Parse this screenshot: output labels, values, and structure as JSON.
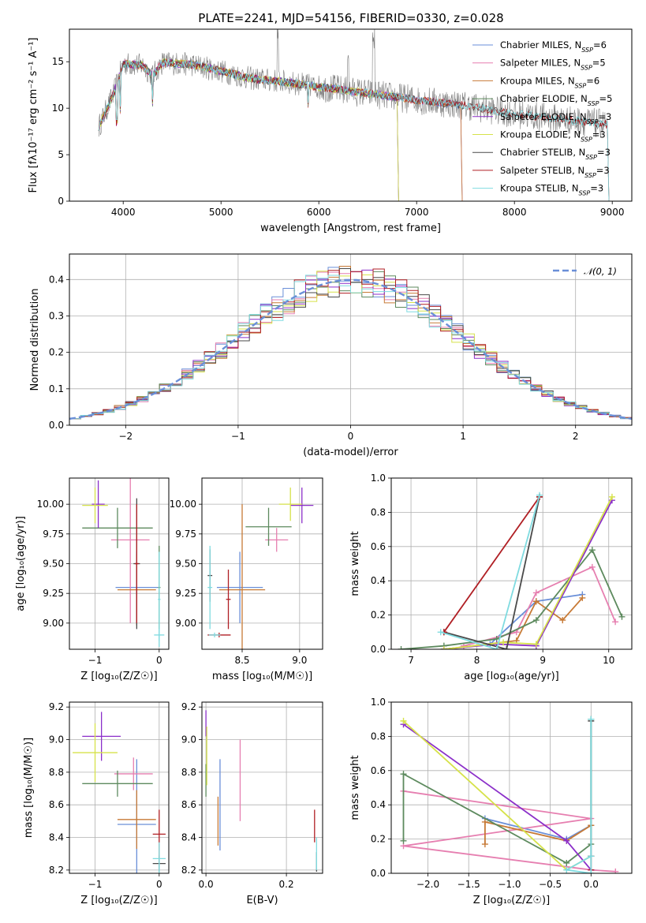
{
  "colors": [
    "#6a8fd8",
    "#e67fb0",
    "#c77a36",
    "#5d8a5e",
    "#8b2fc9",
    "#d6e24a",
    "#4a4a4a",
    "#b01f24",
    "#7fdbe0"
  ],
  "series_names": [
    "Chabrier MILES, N_SSP=6",
    "Salpeter MILES, N_SSP=5",
    "Kroupa MILES, N_SSP=6",
    "Chabrier ELODIE, N_SSP=5",
    "Salpeter ELODIE, N_SSP=3",
    "Kroupa ELODIE, N_SSP=3",
    "Chabrier STELIB, N_SSP=3",
    "Salpeter STELIB, N_SSP=3",
    "Kroupa STELIB, N_SSP=3"
  ],
  "chart_data": [
    {
      "id": "spectrum",
      "type": "line",
      "title": "PLATE=2241, MJD=54156, FIBERID=0330, z=0.028",
      "xlabel": "wavelength [Angstrom, rest frame]",
      "ylabel": "Flux [fλ10⁻¹⁷ erg cm⁻² s⁻¹ A⁻¹]",
      "xlim": [
        3450,
        9200
      ],
      "ylim": [
        0,
        18.5
      ],
      "xticks": [
        4000,
        5000,
        6000,
        7000,
        8000,
        9000
      ],
      "yticks": [
        0,
        5,
        10,
        15
      ],
      "legend": "top-right",
      "continuum_x": [
        3750,
        3900,
        4000,
        4200,
        4300,
        4400,
        4700,
        5000,
        5300,
        5600,
        6000,
        6500,
        7000,
        7500,
        8000,
        8500,
        9000
      ],
      "continuum_y": [
        8.0,
        11.5,
        14.8,
        14.6,
        13.5,
        14.9,
        14.7,
        14.0,
        13.2,
        12.9,
        12.3,
        11.6,
        10.9,
        10.3,
        9.4,
        8.8,
        8.2
      ],
      "series": [
        {
          "name": "Chabrier MILES",
          "nssp": 6,
          "xmax": 7450
        },
        {
          "name": "Salpeter MILES",
          "nssp": 5,
          "xmax": 7450
        },
        {
          "name": "Kroupa MILES",
          "nssp": 6,
          "xmax": 7450
        },
        {
          "name": "Chabrier ELODIE",
          "nssp": 5,
          "xmax": 6800
        },
        {
          "name": "Salpeter ELODIE",
          "nssp": 3,
          "xmax": 6800
        },
        {
          "name": "Kroupa ELODIE",
          "nssp": 3,
          "xmax": 6800
        },
        {
          "name": "Chabrier STELIB",
          "nssp": 3,
          "xmax": 8950
        },
        {
          "name": "Salpeter STELIB",
          "nssp": 3,
          "xmax": 8950
        },
        {
          "name": "Kroupa STELIB",
          "nssp": 3,
          "xmax": 8950
        }
      ]
    },
    {
      "id": "residuals",
      "type": "histogram",
      "xlabel": "(data-model)/error",
      "ylabel": "Normed distribution",
      "xlim": [
        -2.5,
        2.5
      ],
      "ylim": [
        0,
        0.47
      ],
      "xticks": [
        -2,
        -1,
        0,
        1,
        2
      ],
      "yticks": [
        0.0,
        0.1,
        0.2,
        0.3,
        0.4
      ],
      "bin_width": 0.1,
      "reference_label": "𝒩(0, 1)",
      "legend": "top-right"
    },
    {
      "id": "age_vs_Z",
      "type": "errorbar",
      "xlabel": "Z [log₁₀(Z/Z☉)]",
      "ylabel": "age  [log₁₀(age/yr)]",
      "xlim": [
        -1.4,
        0.15
      ],
      "ylim": [
        8.78,
        10.22
      ],
      "xticks": [
        -1,
        0
      ],
      "yticks": [
        9.0,
        9.25,
        9.5,
        9.75,
        10.0
      ],
      "points": [
        {
          "s": 0,
          "x": -0.35,
          "y": 9.3,
          "xerr": 0.33,
          "yerr": 0.3
        },
        {
          "s": 1,
          "x": -0.45,
          "y": 9.7,
          "xerr": 0.3,
          "yerr": 0.7
        },
        {
          "s": 2,
          "x": -0.35,
          "y": 9.28,
          "xerr": 0.3,
          "yerr": 0.3
        },
        {
          "s": 3,
          "x": -0.65,
          "y": 9.8,
          "xerr": 0.55,
          "yerr": 0.17
        },
        {
          "s": 4,
          "x": -0.95,
          "y": 10.0,
          "xerr": 0.1,
          "yerr": 0.2
        },
        {
          "s": 5,
          "x": -1.0,
          "y": 9.99,
          "xerr": 0.2,
          "yerr": 0.15
        },
        {
          "s": 6,
          "x": -0.35,
          "y": 9.5,
          "xerr": 0.05,
          "yerr": 0.55
        },
        {
          "s": 7,
          "x": -0.35,
          "y": 9.5,
          "xerr": 0.03,
          "yerr": 0.5
        },
        {
          "s": 8,
          "x": 0.0,
          "y": 8.9,
          "xerr": 0.08,
          "yerr": 0.05
        },
        {
          "s": 3,
          "x": 0.0,
          "y": 9.3,
          "xerr": 0.02,
          "yerr": 0.35
        },
        {
          "s": 8,
          "x": 0.0,
          "y": 9.2,
          "xerr": 0.02,
          "yerr": 0.4
        }
      ]
    },
    {
      "id": "age_vs_mass",
      "type": "errorbar",
      "xlabel": "mass [log₁₀(M/M☉)]",
      "ylabel": "",
      "xlim": [
        8.15,
        9.2
      ],
      "ylim": [
        8.78,
        10.22
      ],
      "xticks": [
        8.5,
        9.0
      ],
      "yticks": [
        9.0,
        9.25,
        9.5,
        9.75,
        10.0
      ],
      "points": [
        {
          "s": 0,
          "x": 8.48,
          "y": 9.3,
          "xerr": 0.2,
          "yerr": 0.3
        },
        {
          "s": 1,
          "x": 8.8,
          "y": 9.7,
          "xerr": 0.1,
          "yerr": 0.1
        },
        {
          "s": 2,
          "x": 8.5,
          "y": 9.28,
          "xerr": 0.2,
          "yerr": 0.72
        },
        {
          "s": 3,
          "x": 8.73,
          "y": 9.81,
          "xerr": 0.2,
          "yerr": 0.16
        },
        {
          "s": 4,
          "x": 9.02,
          "y": 9.99,
          "xerr": 0.1,
          "yerr": 0.15
        },
        {
          "s": 5,
          "x": 8.92,
          "y": 10.0,
          "xerr": 0.1,
          "yerr": 0.14
        },
        {
          "s": 6,
          "x": 8.22,
          "y": 9.4,
          "xerr": 0.02,
          "yerr": 0.22
        },
        {
          "s": 7,
          "x": 8.38,
          "y": 9.2,
          "xerr": 0.02,
          "yerr": 0.25
        },
        {
          "s": 7,
          "x": 8.3,
          "y": 8.9,
          "xerr": 0.1,
          "yerr": 0.02
        },
        {
          "s": 8,
          "x": 8.26,
          "y": 8.9,
          "xerr": 0.05,
          "yerr": 0.02
        },
        {
          "s": 8,
          "x": 8.22,
          "y": 9.3,
          "xerr": 0.02,
          "yerr": 0.35
        }
      ]
    },
    {
      "id": "weight_vs_age",
      "type": "line",
      "xlabel": "age  [log₁₀(age/yr)]",
      "ylabel": "mass weight",
      "xlim": [
        6.7,
        10.35
      ],
      "ylim": [
        0,
        1
      ],
      "xticks": [
        7,
        8,
        9,
        10
      ],
      "yticks": [
        0.0,
        0.2,
        0.4,
        0.6,
        0.8,
        1.0
      ],
      "series": [
        {
          "s": 0,
          "x": [
            7.5,
            8.2,
            8.9,
            9.6
          ],
          "y": [
            0.0,
            0.03,
            0.28,
            0.32
          ]
        },
        {
          "s": 1,
          "x": [
            7.8,
            8.6,
            8.9,
            9.75,
            10.1
          ],
          "y": [
            0.02,
            0.1,
            0.33,
            0.48,
            0.16
          ]
        },
        {
          "s": 2,
          "x": [
            7.5,
            8.6,
            8.9,
            9.3,
            9.6
          ],
          "y": [
            0.0,
            0.05,
            0.28,
            0.17,
            0.3
          ]
        },
        {
          "s": 3,
          "x": [
            6.85,
            7.5,
            8.3,
            8.9,
            9.75,
            10.2
          ],
          "y": [
            0.0,
            0.02,
            0.06,
            0.17,
            0.58,
            0.19
          ]
        },
        {
          "s": 4,
          "x": [
            7.5,
            8.3,
            8.9,
            10.05
          ],
          "y": [
            0.0,
            0.03,
            0.02,
            0.87
          ]
        },
        {
          "s": 5,
          "x": [
            7.5,
            8.4,
            8.9,
            10.05
          ],
          "y": [
            0.0,
            0.04,
            0.03,
            0.89
          ]
        },
        {
          "s": 6,
          "x": [
            7.5,
            8.45,
            8.95
          ],
          "y": [
            0.1,
            0.0,
            0.89
          ]
        },
        {
          "s": 7,
          "x": [
            7.5,
            8.95
          ],
          "y": [
            0.1,
            0.89
          ]
        },
        {
          "s": 8,
          "x": [
            7.45,
            8.3,
            8.95
          ],
          "y": [
            0.1,
            0.0,
            0.9
          ]
        }
      ]
    },
    {
      "id": "mass_vs_Z",
      "type": "errorbar",
      "xlabel": "Z [log₁₀(Z/Z☉)]",
      "ylabel": "mass [log₁₀(M/M☉)]",
      "xlim": [
        -1.4,
        0.15
      ],
      "ylim": [
        8.18,
        9.23
      ],
      "xticks": [
        -1,
        0
      ],
      "yticks": [
        8.2,
        8.4,
        8.6,
        8.8,
        9.0,
        9.2
      ],
      "points": [
        {
          "s": 0,
          "x": -0.35,
          "y": 8.48,
          "xerr": 0.3,
          "yerr": 0.4
        },
        {
          "s": 1,
          "x": -0.4,
          "y": 8.79,
          "xerr": 0.3,
          "yerr": 0.1
        },
        {
          "s": 2,
          "x": -0.35,
          "y": 8.51,
          "xerr": 0.3,
          "yerr": 0.18
        },
        {
          "s": 3,
          "x": -0.65,
          "y": 8.73,
          "xerr": 0.55,
          "yerr": 0.08
        },
        {
          "s": 4,
          "x": -0.9,
          "y": 9.02,
          "xerr": 0.3,
          "yerr": 0.15
        },
        {
          "s": 5,
          "x": -1.0,
          "y": 8.92,
          "xerr": 0.35,
          "yerr": 0.18
        },
        {
          "s": 6,
          "x": 0.0,
          "y": 8.24,
          "xerr": 0.1,
          "yerr": 0.05
        },
        {
          "s": 7,
          "x": 0.0,
          "y": 8.42,
          "xerr": 0.1,
          "yerr": 0.15
        },
        {
          "s": 8,
          "x": 0.0,
          "y": 8.27,
          "xerr": 0.1,
          "yerr": 0.1
        }
      ]
    },
    {
      "id": "mass_vs_EBV",
      "type": "errorbar",
      "xlabel": "E(B-V)",
      "ylabel": "",
      "xlim": [
        -0.01,
        0.29
      ],
      "ylim": [
        8.18,
        9.23
      ],
      "xticks": [
        0.0,
        0.2
      ],
      "yticks": [
        8.2,
        8.4,
        8.6,
        8.8,
        9.0,
        9.2
      ],
      "points": [
        {
          "s": 0,
          "x": 0.035,
          "y": 8.6,
          "xerr": 0,
          "yerr": 0.28
        },
        {
          "s": 1,
          "x": 0.085,
          "y": 8.75,
          "xerr": 0,
          "yerr": 0.25
        },
        {
          "s": 2,
          "x": 0.03,
          "y": 8.5,
          "xerr": 0,
          "yerr": 0.15
        },
        {
          "s": 3,
          "x": 0.0,
          "y": 8.75,
          "xerr": 0,
          "yerr": 0.1
        },
        {
          "s": 4,
          "x": 0.0,
          "y": 9.1,
          "xerr": 0,
          "yerr": 0.08
        },
        {
          "s": 5,
          "x": 0.002,
          "y": 8.9,
          "xerr": 0,
          "yerr": 0.18
        },
        {
          "s": 6,
          "x": 0.275,
          "y": 8.25,
          "xerr": 0,
          "yerr": 0.06
        },
        {
          "s": 7,
          "x": 0.27,
          "y": 8.47,
          "xerr": 0,
          "yerr": 0.1
        },
        {
          "s": 8,
          "x": 0.275,
          "y": 8.3,
          "xerr": 0,
          "yerr": 0.1
        }
      ]
    },
    {
      "id": "weight_vs_Z",
      "type": "line",
      "xlabel": "Z [log₁₀(Z/Z☉)]",
      "ylabel": "mass weight",
      "xlim": [
        -2.45,
        0.5
      ],
      "ylim": [
        0,
        1
      ],
      "xticks": [
        -2.0,
        -1.5,
        -1.0,
        -0.5,
        0.0
      ],
      "yticks": [
        0.0,
        0.2,
        0.4,
        0.6,
        0.8,
        1.0
      ],
      "series": [
        {
          "s": 0,
          "x": [
            -1.3,
            -0.3,
            0.0
          ],
          "y": [
            0.32,
            0.2,
            0.28
          ]
        },
        {
          "s": 1,
          "x": [
            -2.3,
            0.0,
            -2.3,
            0.0,
            0.3
          ],
          "y": [
            0.48,
            0.32,
            0.16,
            0.02,
            0.01
          ]
        },
        {
          "s": 2,
          "x": [
            -1.3,
            -1.3,
            -0.3,
            0.0
          ],
          "y": [
            0.17,
            0.3,
            0.19,
            0.28
          ]
        },
        {
          "s": 3,
          "x": [
            -2.3,
            -2.3,
            -0.3,
            0.0,
            0.0
          ],
          "y": [
            0.19,
            0.58,
            0.06,
            0.17,
            0.9
          ]
        },
        {
          "s": 4,
          "x": [
            -2.3,
            -0.3,
            0.0
          ],
          "y": [
            0.87,
            0.19,
            0.02
          ]
        },
        {
          "s": 5,
          "x": [
            -2.3,
            -0.3,
            0.0
          ],
          "y": [
            0.89,
            0.02,
            0.1
          ]
        },
        {
          "s": 6,
          "x": [
            0.0,
            0.0
          ],
          "y": [
            0.1,
            0.89
          ]
        },
        {
          "s": 7,
          "x": [
            0.0,
            0.0
          ],
          "y": [
            0.02,
            0.1
          ]
        },
        {
          "s": 8,
          "x": [
            0.0,
            0.0,
            -0.3,
            0.0
          ],
          "y": [
            0.9,
            0.0,
            0.02,
            0.1
          ]
        }
      ]
    }
  ]
}
